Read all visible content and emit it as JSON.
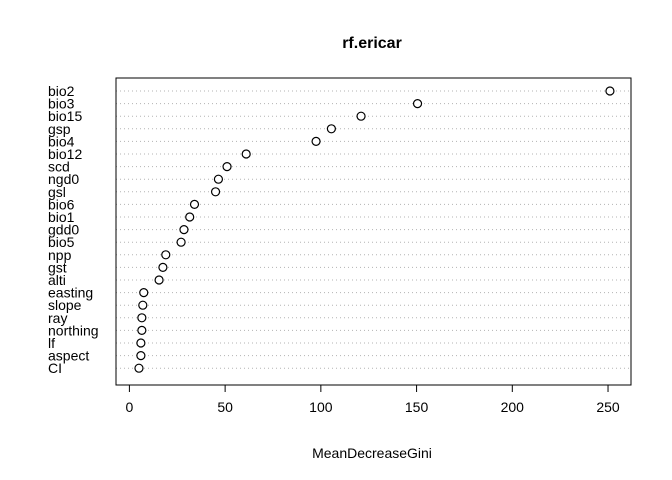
{
  "chart_data": {
    "type": "scatter",
    "title": "rf.ericar",
    "xlabel": "MeanDecreaseGini",
    "ylabel": "",
    "xlim": [
      -7,
      262
    ],
    "xticks": [
      0,
      50,
      100,
      150,
      200,
      250
    ],
    "grid": "dotted-horizontal",
    "legend": "none",
    "categories": [
      "bio2",
      "bio3",
      "bio15",
      "gsp",
      "bio4",
      "bio12",
      "scd",
      "ngd0",
      "gsl",
      "bio6",
      "bio1",
      "gdd0",
      "bio5",
      "npp",
      "gst",
      "alti",
      "easting",
      "slope",
      "ray",
      "northing",
      "lf",
      "aspect",
      "CI"
    ],
    "values": [
      251,
      150.5,
      121,
      105.5,
      97.5,
      61,
      51,
      46.5,
      45,
      34,
      31.5,
      28.5,
      27,
      19,
      17.5,
      15.5,
      7.5,
      7,
      6.5,
      6.5,
      6,
      6,
      5
    ]
  }
}
